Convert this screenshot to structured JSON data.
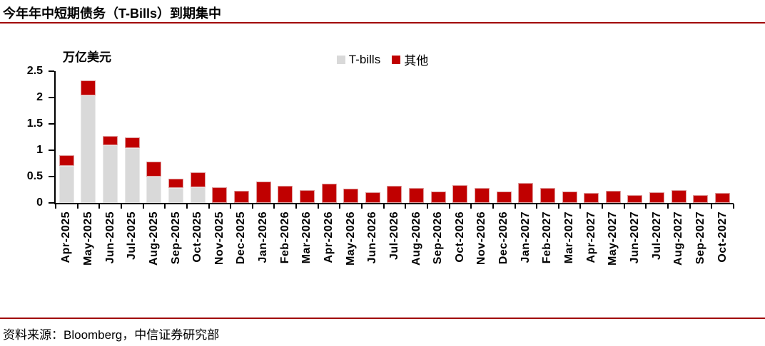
{
  "header": {
    "title": "今年年中短期债务（T-Bills）到期集中"
  },
  "footer": {
    "source": "资料来源：Bloomberg，中信证券研究部"
  },
  "colors": {
    "rule": "#a00000",
    "axis": "#000000",
    "tbills_fill": "#d9d9d9",
    "tbills_border": "#e8e8e8",
    "other_fill": "#c00000",
    "other_border": "#de9d9d"
  },
  "chart_data": {
    "type": "bar",
    "stacked": true,
    "title": "今年年中短期债务（T-Bills）到期集中",
    "ylabel": "万亿美元",
    "xlabel": "",
    "ylim": [
      0,
      2.5
    ],
    "yticks": [
      "0",
      "0.5",
      "1",
      "1.5",
      "2",
      "2.5"
    ],
    "grid": false,
    "legend_position": "top-center",
    "categories": [
      "Apr-2025",
      "May-2025",
      "Jun-2025",
      "Jul-2025",
      "Aug-2025",
      "Sep-2025",
      "Oct-2025",
      "Nov-2025",
      "Dec-2025",
      "Jan-2026",
      "Feb-2026",
      "Mar-2026",
      "Apr-2026",
      "May-2026",
      "Jun-2026",
      "Jul-2026",
      "Aug-2026",
      "Sep-2026",
      "Oct-2026",
      "Nov-2026",
      "Dec-2026",
      "Jan-2027",
      "Feb-2027",
      "Mar-2027",
      "Apr-2027",
      "May-2027",
      "Jun-2027",
      "Jul-2027",
      "Aug-2027",
      "Sep-2027",
      "Oct-2027"
    ],
    "series": [
      {
        "name": "T-bills",
        "color": "#d9d9d9",
        "values": [
          0.7,
          2.04,
          1.1,
          1.04,
          0.5,
          0.28,
          0.3,
          0,
          0,
          0,
          0,
          0,
          0,
          0,
          0,
          0,
          0,
          0,
          0,
          0,
          0,
          0,
          0,
          0,
          0,
          0,
          0,
          0,
          0,
          0,
          0
        ]
      },
      {
        "name": "其他",
        "color": "#c00000",
        "values": [
          0.2,
          0.28,
          0.18,
          0.2,
          0.28,
          0.18,
          0.28,
          0.3,
          0.23,
          0.4,
          0.33,
          0.24,
          0.37,
          0.27,
          0.2,
          0.33,
          0.29,
          0.21,
          0.34,
          0.28,
          0.21,
          0.38,
          0.29,
          0.22,
          0.19,
          0.23,
          0.15,
          0.2,
          0.24,
          0.15,
          0.19
        ]
      }
    ]
  }
}
